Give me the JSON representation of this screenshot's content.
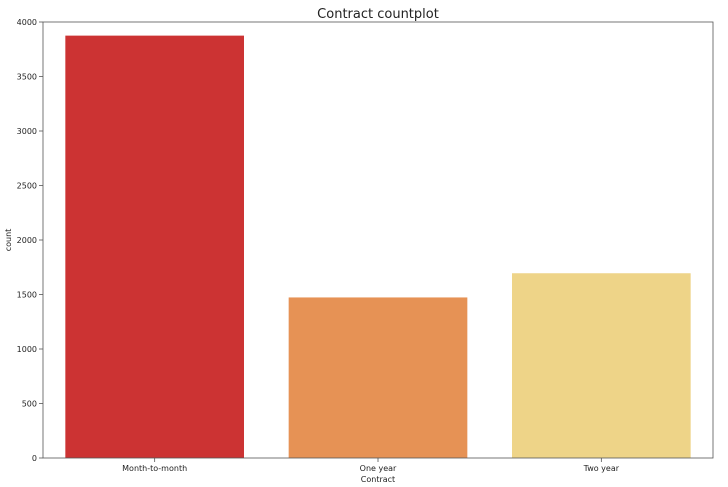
{
  "chart_data": {
    "type": "bar",
    "title": "Contract countplot",
    "xlabel": "Contract",
    "ylabel": "count",
    "categories": [
      "Month-to-month",
      "One year",
      "Two year"
    ],
    "values": [
      3875,
      1473,
      1695
    ],
    "colors": [
      "#cc3333",
      "#e69255",
      "#eed488"
    ],
    "ylim": [
      0,
      4000
    ],
    "yticks": [
      0,
      500,
      1000,
      1500,
      2000,
      2500,
      3000,
      3500,
      4000
    ],
    "grid": false,
    "legend": "none"
  }
}
